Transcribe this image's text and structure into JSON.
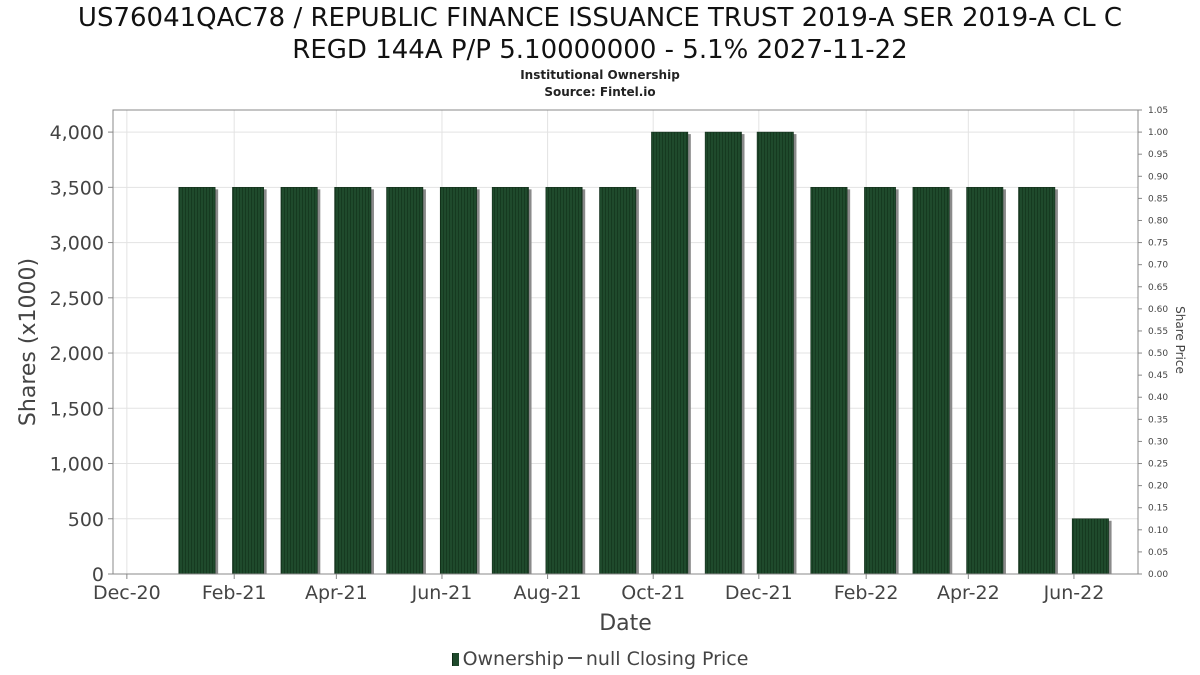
{
  "header": {
    "title_line1": "US76041QAC78 / REPUBLIC FINANCE ISSUANCE TRUST 2019-A SER 2019-A CL C",
    "title_line2": "REGD 144A P/P 5.10000000 - 5.1% 2027-11-22",
    "subtitle1": "Institutional Ownership",
    "subtitle2": "Source: Fintel.io"
  },
  "legend": {
    "ownership": "Ownership",
    "closing_price": "null Closing Price"
  },
  "colors": {
    "bar": "#1f4a2c",
    "bar_shadow": "#8a8a8a",
    "grid": "#e3e3e3",
    "axis": "#888888"
  },
  "chart_data": {
    "type": "bar",
    "xlabel": "Date",
    "ylabel": "Shares (x1000)",
    "y2label": "Share Price",
    "x_ticks": [
      "Dec-20",
      "Feb-21",
      "Apr-21",
      "Jun-21",
      "Aug-21",
      "Oct-21",
      "Dec-21",
      "Feb-22",
      "Apr-22",
      "Jun-22"
    ],
    "x_tick_dates": [
      "2020-12-01",
      "2021-02-01",
      "2021-04-01",
      "2021-06-01",
      "2021-08-01",
      "2021-10-01",
      "2021-12-01",
      "2022-02-01",
      "2022-04-01",
      "2022-06-01"
    ],
    "xlim": [
      "2020-11-23",
      "2022-07-08"
    ],
    "ylim": [
      0,
      4200
    ],
    "y_ticks": [
      0,
      500,
      1000,
      1500,
      2000,
      2500,
      3000,
      3500,
      4000
    ],
    "y_tick_labels": [
      "0",
      "500",
      "1,000",
      "1,500",
      "2,000",
      "2,500",
      "3,000",
      "3,500",
      "4,000"
    ],
    "y2lim": [
      0,
      1.05
    ],
    "y2_ticks": [
      "0.00",
      "0.05",
      "0.10",
      "0.15",
      "0.20",
      "0.25",
      "0.30",
      "0.35",
      "0.40",
      "0.45",
      "0.50",
      "0.55",
      "0.60",
      "0.65",
      "0.70",
      "0.75",
      "0.80",
      "0.85",
      "0.90",
      "0.95",
      "1.00",
      "1.05"
    ],
    "series": [
      {
        "name": "Ownership",
        "points": [
          {
            "start": "2020-12-31",
            "end": "2021-01-21",
            "value": 3500
          },
          {
            "start": "2021-01-31",
            "end": "2021-02-18",
            "value": 3500
          },
          {
            "start": "2021-02-28",
            "end": "2021-03-21",
            "value": 3500
          },
          {
            "start": "2021-03-31",
            "end": "2021-04-21",
            "value": 3500
          },
          {
            "start": "2021-04-30",
            "end": "2021-05-21",
            "value": 3500
          },
          {
            "start": "2021-05-31",
            "end": "2021-06-21",
            "value": 3500
          },
          {
            "start": "2021-06-30",
            "end": "2021-07-21",
            "value": 3500
          },
          {
            "start": "2021-07-31",
            "end": "2021-08-21",
            "value": 3500
          },
          {
            "start": "2021-08-31",
            "end": "2021-09-21",
            "value": 3500
          },
          {
            "start": "2021-09-30",
            "end": "2021-10-21",
            "value": 4000
          },
          {
            "start": "2021-10-31",
            "end": "2021-11-21",
            "value": 4000
          },
          {
            "start": "2021-11-30",
            "end": "2021-12-21",
            "value": 4000
          },
          {
            "start": "2021-12-31",
            "end": "2022-01-21",
            "value": 3500
          },
          {
            "start": "2022-01-31",
            "end": "2022-02-18",
            "value": 3500
          },
          {
            "start": "2022-02-28",
            "end": "2022-03-21",
            "value": 3500
          },
          {
            "start": "2022-03-31",
            "end": "2022-04-21",
            "value": 3500
          },
          {
            "start": "2022-04-30",
            "end": "2022-05-21",
            "value": 3500
          },
          {
            "start": "2022-05-31",
            "end": "2022-06-21",
            "value": 500
          }
        ]
      }
    ],
    "grid": true,
    "legend_position": "bottom"
  }
}
